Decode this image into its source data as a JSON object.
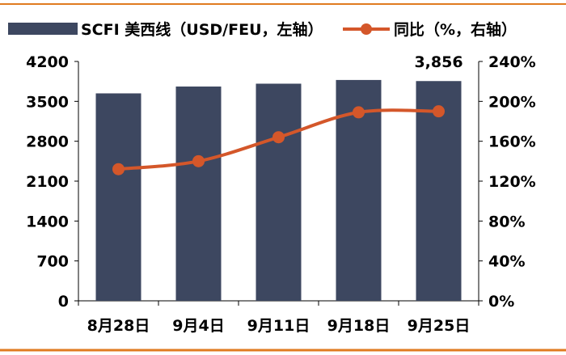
{
  "chart_data": {
    "type": "bar",
    "categories": [
      "8月28日",
      "9月4日",
      "9月11日",
      "9月18日",
      "9月25日"
    ],
    "series": [
      {
        "name": "SCFI 美西线（USD/FEU，左轴）",
        "type": "bar",
        "axis": "left",
        "values": [
          3640,
          3760,
          3810,
          3875,
          3856
        ],
        "color": "#3d4760"
      },
      {
        "name": "同比（%，右轴）",
        "type": "line",
        "axis": "right",
        "values": [
          132,
          140,
          164,
          189,
          190
        ],
        "color": "#d4572a"
      }
    ],
    "y_left": {
      "ticks": [
        "0",
        "700",
        "1400",
        "2100",
        "2800",
        "3500",
        "4200"
      ],
      "lim": [
        0,
        4200
      ]
    },
    "y_right": {
      "ticks": [
        "0%",
        "40%",
        "80%",
        "120%",
        "160%",
        "200%",
        "240%"
      ],
      "lim": [
        0,
        240
      ]
    },
    "data_labels": [
      {
        "series": 0,
        "index": 4,
        "text": "3,856"
      }
    ],
    "legend_position": "top",
    "grid": false,
    "frame_color": "#e07b20"
  }
}
